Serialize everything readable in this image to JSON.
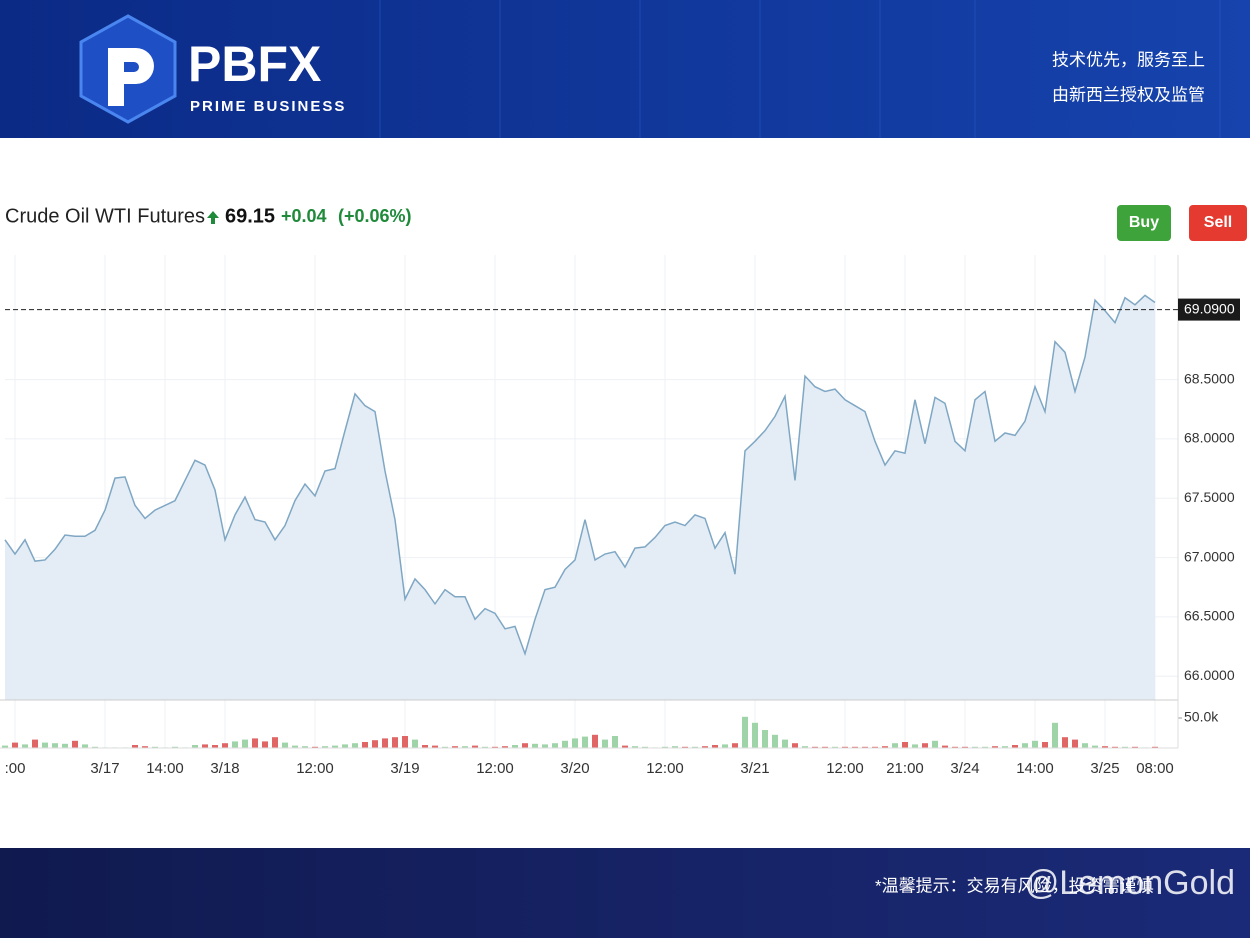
{
  "header": {
    "brand": "PBFX",
    "tagline": "PRIME BUSINESS",
    "slogan": "技术优先，服务至上",
    "regulation": "由新西兰授权及监管"
  },
  "buttons": [
    "Buy",
    "Sell"
  ],
  "footer": {
    "notice": "*温馨提示：交易有风险，投资需谨慎",
    "watermark": "@LemonGold"
  },
  "chart_data": {
    "type": "line",
    "title": "Crude Oil WTI Futures",
    "last": 69.15,
    "change": {
      "value": 0.04,
      "label": "+0.04"
    },
    "change_pct": {
      "value": 0.06,
      "label": "(+0.06%)"
    },
    "price_line": {
      "value": 69.09,
      "label": "69.0900"
    },
    "categories": [
      null,
      ":00",
      null,
      null,
      null,
      null,
      null,
      null,
      null,
      null,
      "3/17",
      null,
      null,
      null,
      null,
      null,
      "14:00",
      null,
      null,
      null,
      null,
      null,
      "3/18",
      null,
      null,
      null,
      null,
      null,
      null,
      null,
      null,
      "12:00",
      null,
      null,
      null,
      null,
      null,
      null,
      null,
      null,
      "3/19",
      null,
      null,
      null,
      null,
      null,
      null,
      null,
      null,
      "12:00",
      null,
      null,
      null,
      null,
      null,
      null,
      null,
      "3/20",
      null,
      null,
      null,
      null,
      null,
      null,
      null,
      null,
      "12:00",
      null,
      null,
      null,
      null,
      null,
      null,
      null,
      null,
      "3/21",
      null,
      null,
      null,
      null,
      null,
      null,
      null,
      null,
      "12:00",
      null,
      null,
      null,
      null,
      null,
      "21:00",
      null,
      null,
      null,
      null,
      null,
      "3/24",
      null,
      null,
      null,
      null,
      null,
      null,
      "14:00",
      null,
      null,
      null,
      null,
      null,
      null,
      "3/25",
      null,
      null,
      null,
      null,
      "08:00"
    ],
    "series": [
      {
        "color": "#7fa7c4",
        "values": [
          67.15,
          67.03,
          67.15,
          66.97,
          66.98,
          67.07,
          67.19,
          67.18,
          67.18,
          67.23,
          67.4,
          67.67,
          67.68,
          67.44,
          67.33,
          67.4,
          67.44,
          67.48,
          67.65,
          67.82,
          67.78,
          67.57,
          67.15,
          67.36,
          67.51,
          67.32,
          67.3,
          67.15,
          67.27,
          67.48,
          67.62,
          67.52,
          67.73,
          67.75,
          68.07,
          68.38,
          68.28,
          68.23,
          67.73,
          67.32,
          66.65,
          66.82,
          66.73,
          66.61,
          66.73,
          66.67,
          66.67,
          66.48,
          66.57,
          66.53,
          66.4,
          66.42,
          66.19,
          66.48,
          66.73,
          66.75,
          66.9,
          66.98,
          67.32,
          66.98,
          67.03,
          67.05,
          66.92,
          67.08,
          67.09,
          67.17,
          67.27,
          67.3,
          67.27,
          67.36,
          67.33,
          67.08,
          67.21,
          66.86,
          67.9,
          67.98,
          68.07,
          68.19,
          68.36,
          67.65,
          68.53,
          68.44,
          68.4,
          68.42,
          68.33,
          68.28,
          68.23,
          67.98,
          67.78,
          67.9,
          67.88,
          68.33,
          67.96,
          68.35,
          68.3,
          67.98,
          67.9,
          68.33,
          68.4,
          67.98,
          68.05,
          68.03,
          68.15,
          68.44,
          68.23,
          68.82,
          68.73,
          68.4,
          68.69,
          69.17,
          69.08,
          68.98,
          69.19,
          69.13,
          69.21,
          69.15
        ]
      },
      {
        "type": "bar",
        "axis": "y2",
        "color": "#9fd4a9",
        "down_color": "#e06666",
        "values": [
          4000,
          9000,
          6000,
          14000,
          9000,
          8000,
          7000,
          12000,
          6000,
          2000,
          1000,
          1000,
          1000,
          5000,
          3000,
          2000,
          1000,
          2000,
          1000,
          5000,
          6000,
          5000,
          8000,
          11000,
          14000,
          16000,
          11000,
          18000,
          9000,
          4000,
          3000,
          2000,
          3000,
          4000,
          6000,
          8000,
          10000,
          13000,
          16000,
          18000,
          20000,
          14000,
          5000,
          4000,
          2000,
          3000,
          3000,
          4000,
          2000,
          2000,
          3000,
          5000,
          8000,
          7000,
          6000,
          8000,
          12000,
          16000,
          19000,
          22000,
          14000,
          20000,
          4000,
          3000,
          2000,
          1000,
          2000,
          3000,
          2000,
          2000,
          3000,
          5000,
          6000,
          8000,
          52000,
          42000,
          30000,
          22000,
          14000,
          8000,
          3000,
          2000,
          2000,
          2000,
          2000,
          2000,
          2000,
          2000,
          3000,
          8000,
          10000,
          6000,
          8000,
          12000,
          4000,
          2000,
          2000,
          2000,
          2000,
          3000,
          3000,
          5000,
          8000,
          12000,
          10000,
          42000,
          18000,
          14000,
          8000,
          4000,
          3000,
          2000,
          2000,
          2000,
          1000,
          2000
        ]
      }
    ],
    "ylim": [
      65.8,
      69.55
    ],
    "yticks": [
      {
        "value": 66,
        "label": "66.0000"
      },
      {
        "value": 66.5,
        "label": "66.5000"
      },
      {
        "value": 67,
        "label": "67.0000"
      },
      {
        "value": 67.5,
        "label": "67.5000"
      },
      {
        "value": 68,
        "label": "68.0000"
      },
      {
        "value": 68.5,
        "label": "68.5000"
      }
    ],
    "y2lim": [
      0,
      80000
    ],
    "y2ticks": [
      {
        "value": 50000,
        "label": "50.0k"
      }
    ],
    "fill": "#e4edf5",
    "grid": true
  }
}
